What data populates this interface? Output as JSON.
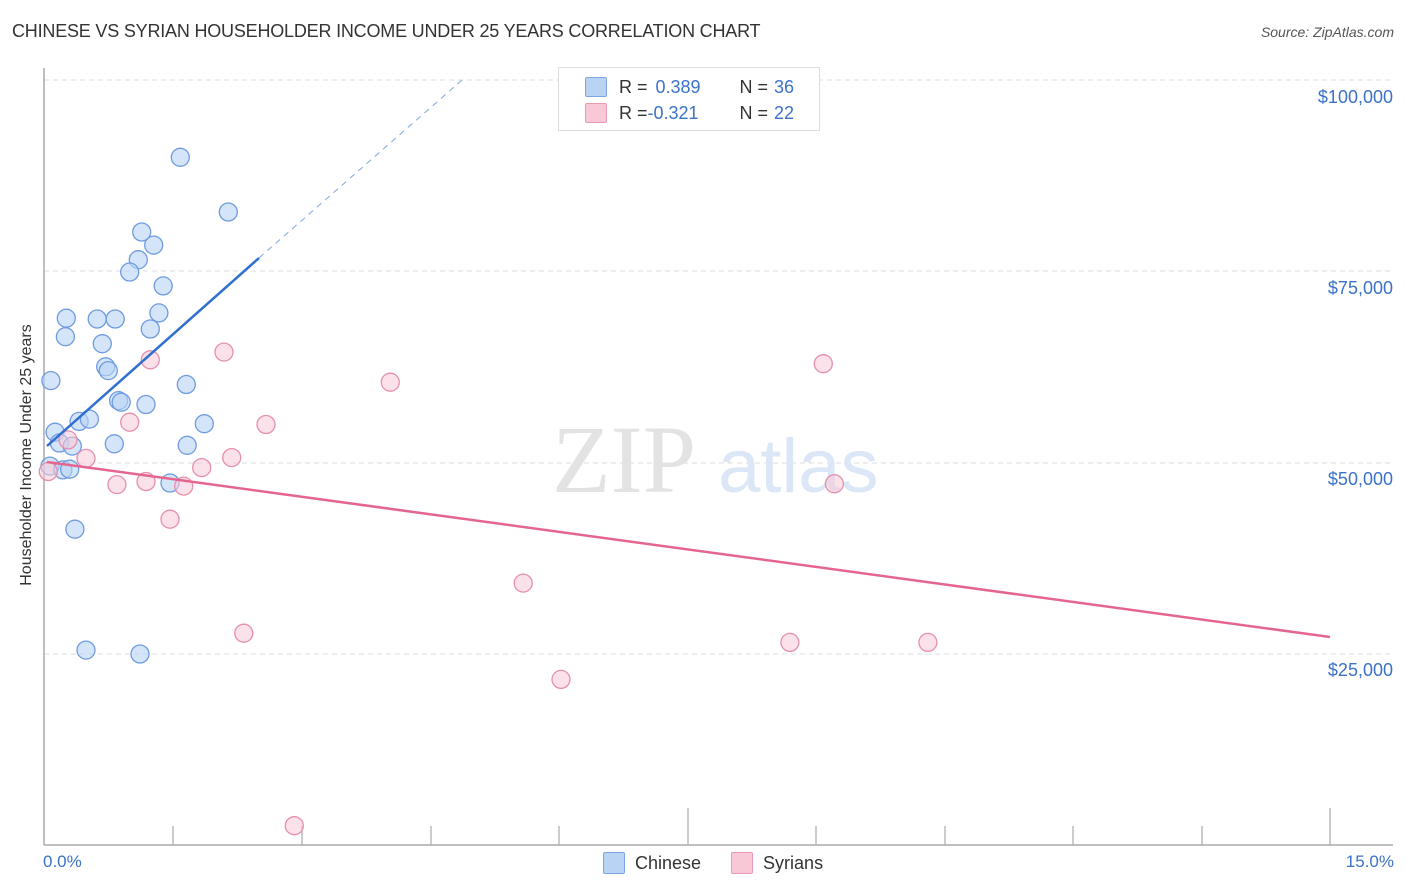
{
  "header": {
    "title": "CHINESE VS SYRIAN HOUSEHOLDER INCOME UNDER 25 YEARS CORRELATION CHART",
    "source": "Source: ZipAtlas.com"
  },
  "legend_box": {
    "rows": [
      {
        "r_label": "R = ",
        "r_value": "0.389",
        "n_label": "N = ",
        "n_value": "36",
        "color": "#b9d3f5"
      },
      {
        "r_label": "R = ",
        "r_value": "-0.321",
        "n_label": "N = ",
        "n_value": "22",
        "color": "#f8c8d7"
      }
    ]
  },
  "axes": {
    "ylabel": "Householder Income Under 25 years",
    "yticks": [
      "$100,000",
      "$75,000",
      "$50,000",
      "$25,000"
    ],
    "xticks": [
      "0.0%",
      "15.0%"
    ]
  },
  "bottom_legend": {
    "items": [
      {
        "label": "Chinese",
        "color": "#b9d3f5"
      },
      {
        "label": "Syrians",
        "color": "#f8c8d7"
      }
    ]
  },
  "watermark": {
    "zip": "ZIP",
    "atlas": "atlas"
  },
  "colors": {
    "chinese_fill": "#b9d3f5",
    "chinese_stroke": "#6f9be0",
    "chinese_line": "#2e6fd0",
    "syrian_fill": "#f8c8d7",
    "syrian_stroke": "#e68fac",
    "syrian_line": "#e4668f",
    "tick_label": "#3b72c8"
  },
  "chart_data": {
    "type": "scatter",
    "title": "CHINESE VS SYRIAN HOUSEHOLDER INCOME UNDER 25 YEARS CORRELATION CHART",
    "xlabel": "",
    "ylabel": "Householder Income Under 25 years",
    "xlim": [
      0,
      15.0
    ],
    "ylim": [
      0,
      100000
    ],
    "x_unit": "%",
    "grid": true,
    "legend_position": "top-center and bottom",
    "series": [
      {
        "name": "Chinese",
        "R": 0.389,
        "N": 36,
        "points": [
          [
            1.59,
            89700
          ],
          [
            2.15,
            82600
          ],
          [
            1.14,
            80000
          ],
          [
            1.28,
            78300
          ],
          [
            1.1,
            76400
          ],
          [
            1.0,
            74800
          ],
          [
            1.39,
            73000
          ],
          [
            1.34,
            69500
          ],
          [
            0.26,
            68800
          ],
          [
            0.62,
            68700
          ],
          [
            0.83,
            68700
          ],
          [
            1.24,
            67400
          ],
          [
            0.25,
            66400
          ],
          [
            0.68,
            65500
          ],
          [
            0.72,
            62500
          ],
          [
            0.75,
            62000
          ],
          [
            0.08,
            60700
          ],
          [
            1.66,
            60200
          ],
          [
            0.87,
            58100
          ],
          [
            0.9,
            57900
          ],
          [
            1.19,
            57600
          ],
          [
            1.87,
            55100
          ],
          [
            0.41,
            55400
          ],
          [
            0.53,
            55700
          ],
          [
            0.13,
            54000
          ],
          [
            0.18,
            52600
          ],
          [
            0.82,
            52500
          ],
          [
            0.33,
            52200
          ],
          [
            1.67,
            52300
          ],
          [
            0.07,
            49600
          ],
          [
            0.22,
            49100
          ],
          [
            0.3,
            49200
          ],
          [
            1.47,
            47400
          ],
          [
            0.36,
            41400
          ],
          [
            0.49,
            25700
          ],
          [
            1.12,
            25200
          ]
        ],
        "trend": {
          "x0": 0.0,
          "y0": 52000,
          "x1": 2.5,
          "y1": 76500,
          "dashed_extension_to": [
            4.9,
            100000
          ]
        }
      },
      {
        "name": "Syrians",
        "R": -0.321,
        "N": 22,
        "points": [
          [
            1.24,
            63400
          ],
          [
            2.1,
            64400
          ],
          [
            4.04,
            60500
          ],
          [
            9.09,
            62900
          ],
          [
            2.59,
            55000
          ],
          [
            1.0,
            55300
          ],
          [
            0.28,
            53000
          ],
          [
            0.49,
            50600
          ],
          [
            2.19,
            50700
          ],
          [
            1.84,
            49400
          ],
          [
            1.19,
            47600
          ],
          [
            0.85,
            47200
          ],
          [
            1.63,
            47000
          ],
          [
            0.05,
            48900
          ],
          [
            9.22,
            47300
          ],
          [
            1.47,
            42700
          ],
          [
            5.59,
            34400
          ],
          [
            2.33,
            27900
          ],
          [
            8.7,
            26700
          ],
          [
            10.31,
            26700
          ],
          [
            6.03,
            21900
          ],
          [
            2.92,
            2900
          ]
        ],
        "trend": {
          "x0": 0.0,
          "y0": 50000,
          "x1": 15.0,
          "y1": 27000
        }
      }
    ]
  }
}
